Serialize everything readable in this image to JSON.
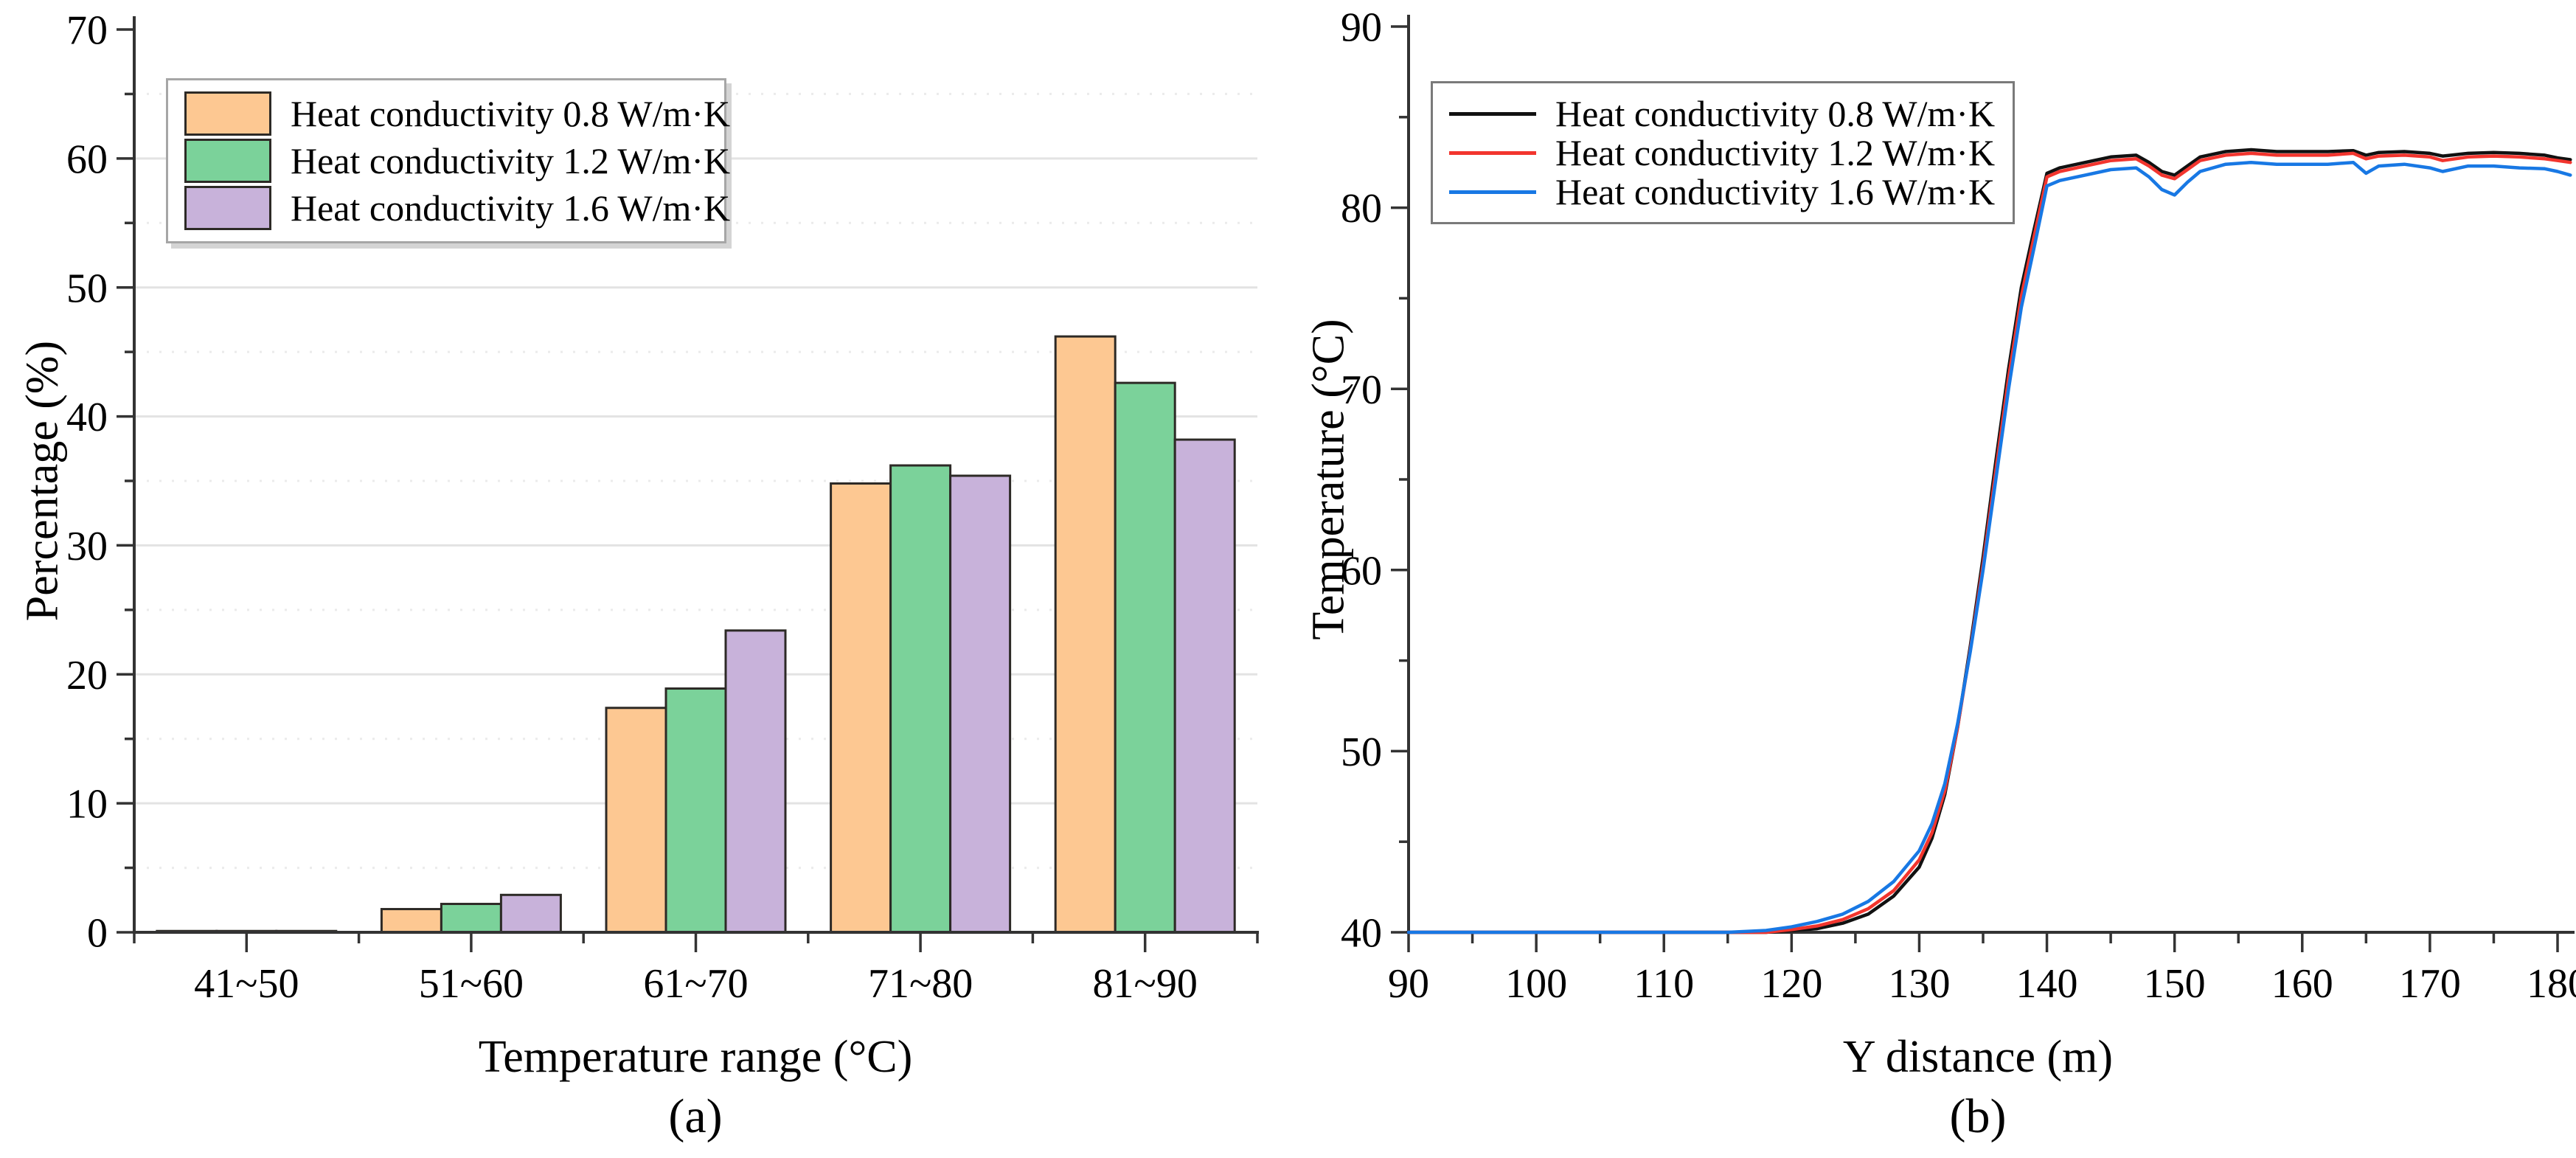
{
  "panels": {
    "a": {
      "caption": "(a)"
    },
    "b": {
      "caption": "(b)"
    }
  },
  "chart_data": [
    {
      "type": "bar",
      "caption": "(a)",
      "xlabel": "Temperature range (°C)",
      "ylabel": "Percentage (%)",
      "categories": [
        "41~50",
        "51~60",
        "61~70",
        "71~80",
        "81~90"
      ],
      "series": [
        {
          "name": "Heat conductivity 0.8 W/m·K",
          "color": "#fdc892",
          "values": [
            0.1,
            1.8,
            17.4,
            34.8,
            46.2
          ]
        },
        {
          "name": "Heat conductivity 1.2 W/m·K",
          "color": "#7bd29a",
          "values": [
            0.1,
            2.2,
            18.9,
            36.2,
            42.6
          ]
        },
        {
          "name": "Heat conductivity 1.6 W/m·K",
          "color": "#c8b2da",
          "values": [
            0.1,
            2.9,
            23.4,
            35.4,
            38.2
          ]
        }
      ],
      "bar_edge_color": "#2d2a26",
      "ylim": [
        0,
        70
      ],
      "y_major_ticks": [
        0,
        10,
        20,
        30,
        40,
        50,
        60,
        70
      ],
      "y_minor_ticks": [
        5,
        15,
        25,
        35,
        45,
        55,
        65
      ],
      "grid": {
        "major": "solid",
        "minor": "dotted"
      },
      "legend_position": "upper left"
    },
    {
      "type": "line",
      "caption": "(b)",
      "xlabel": "Y distance (m)",
      "ylabel": "Temperature (°C)",
      "xlim": [
        90,
        181
      ],
      "ylim": [
        40,
        90
      ],
      "x_major_ticks": [
        90,
        100,
        110,
        120,
        130,
        140,
        150,
        160,
        170,
        180
      ],
      "x_minor_ticks": [
        95,
        105,
        115,
        125,
        135,
        145,
        155,
        165,
        175
      ],
      "y_major_ticks": [
        40,
        50,
        60,
        70,
        80,
        90
      ],
      "y_minor_ticks": [
        45,
        55,
        65,
        75,
        85
      ],
      "grid": {
        "major": "off",
        "minor": "off"
      },
      "legend_position": "upper left",
      "x": [
        90,
        95,
        100,
        105,
        110,
        115,
        118,
        120,
        122,
        124,
        126,
        128,
        130,
        131,
        132,
        133,
        134,
        135,
        136,
        137,
        138,
        139,
        140,
        141,
        143,
        145,
        147,
        148,
        149,
        150,
        151,
        152,
        154,
        156,
        158,
        160,
        162,
        164,
        165,
        166,
        168,
        170,
        171,
        173,
        175,
        177,
        179,
        180,
        181
      ],
      "series": [
        {
          "name": "Heat conductivity 0.8 W/m·K",
          "color": "#111111",
          "y": [
            40,
            40,
            40,
            40,
            40,
            40,
            40,
            40.1,
            40.2,
            40.5,
            41,
            42,
            43.6,
            45.2,
            47.6,
            51.3,
            55.8,
            60.7,
            66,
            71.1,
            75.6,
            78.8,
            81.9,
            82.2,
            82.5,
            82.8,
            82.9,
            82.5,
            82,
            81.8,
            82.3,
            82.8,
            83.1,
            83.2,
            83.1,
            83.1,
            83.1,
            83.15,
            82.9,
            83.05,
            83.1,
            83,
            82.85,
            83,
            83.05,
            83,
            82.9,
            82.75,
            82.65
          ]
        },
        {
          "name": "Heat conductivity 1.2 W/m·K",
          "color": "#f2352e",
          "y": [
            40,
            40,
            40,
            40,
            40,
            40,
            40,
            40.15,
            40.35,
            40.7,
            41.3,
            42.3,
            44,
            45.5,
            47.8,
            51.3,
            55.6,
            60.3,
            65.5,
            70.6,
            75.1,
            78.4,
            81.7,
            82,
            82.3,
            82.6,
            82.7,
            82.3,
            81.8,
            81.6,
            82.1,
            82.6,
            82.9,
            83,
            82.9,
            82.9,
            82.9,
            83,
            82.7,
            82.85,
            82.9,
            82.8,
            82.6,
            82.8,
            82.85,
            82.8,
            82.7,
            82.6,
            82.5
          ]
        },
        {
          "name": "Heat conductivity 1.6 W/m·K",
          "color": "#1878e4",
          "y": [
            40,
            40,
            40,
            40,
            40,
            40,
            40.1,
            40.3,
            40.6,
            41,
            41.7,
            42.8,
            44.5,
            46,
            48.2,
            51.5,
            55.5,
            60,
            65,
            70,
            74.5,
            77.8,
            81.2,
            81.5,
            81.8,
            82.1,
            82.2,
            81.7,
            81,
            80.7,
            81.4,
            82,
            82.4,
            82.5,
            82.4,
            82.4,
            82.4,
            82.5,
            81.9,
            82.3,
            82.4,
            82.2,
            82,
            82.3,
            82.3,
            82.2,
            82.15,
            82,
            81.8
          ]
        }
      ]
    }
  ]
}
